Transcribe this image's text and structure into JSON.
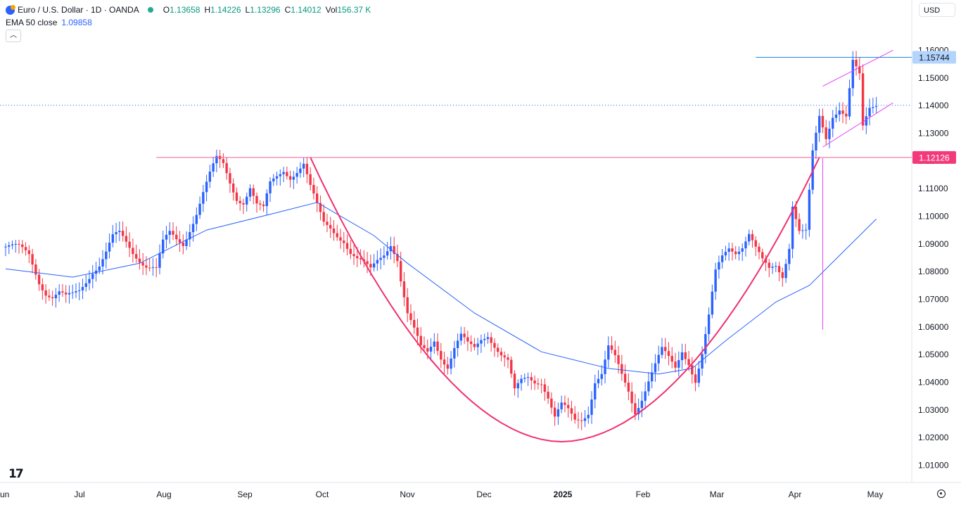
{
  "legend": {
    "symbol": "Euro / U.S. Dollar · 1D · OANDA",
    "open_label": "O",
    "open": "1.13658",
    "high_label": "H",
    "high": "1.14226",
    "low_label": "L",
    "low": "1.13296",
    "close_label": "C",
    "close": "1.14012",
    "vol_label": "Vol",
    "vol": "156.37 K",
    "ema_label": "EMA 50 close",
    "ema_value": "1.09858"
  },
  "currency": "USD",
  "logo_text": "17",
  "colors": {
    "up": "#2962ff",
    "down": "#f23645",
    "ema": "#2962ff",
    "curve": "#f0306e",
    "level": "#f06292",
    "channel": "#e040fb",
    "top_level": "#1e88e5"
  },
  "chart_data": {
    "type": "candlestick",
    "symbol": "EUR/USD",
    "x_tick_labels": [
      "un",
      "Jul",
      "Aug",
      "Sep",
      "Oct",
      "Nov",
      "Dec",
      "2025",
      "Feb",
      "Mar",
      "Apr",
      "May"
    ],
    "y_tick_labels": [
      "1.16000",
      "1.15000",
      "1.14000",
      "1.13000",
      "1.12000",
      "1.11000",
      "1.10000",
      "1.09000",
      "1.08000",
      "1.07000",
      "1.06000",
      "1.05000",
      "1.04000",
      "1.03000",
      "1.02000",
      "1.01000"
    ],
    "ylim": [
      1.003,
      1.168
    ],
    "price_labels": [
      {
        "value": "1.15744",
        "price": 1.15744,
        "style": "top_level"
      },
      {
        "value": "1.12126",
        "price": 1.12126,
        "style": "level"
      }
    ],
    "current_price": 1.14012,
    "close_path": [
      [
        0,
        1.089
      ],
      [
        4,
        1.088
      ],
      [
        7,
        1.086
      ],
      [
        10,
        1.077
      ],
      [
        12,
        1.073
      ],
      [
        14,
        1.071
      ],
      [
        16,
        1.072
      ],
      [
        18,
        1.07
      ],
      [
        20,
        1.071
      ],
      [
        22,
        1.073
      ],
      [
        24,
        1.077
      ],
      [
        26,
        1.081
      ],
      [
        28,
        1.083
      ],
      [
        30,
        1.087
      ],
      [
        32,
        1.092
      ],
      [
        34,
        1.093
      ],
      [
        36,
        1.09
      ],
      [
        38,
        1.087
      ],
      [
        40,
        1.085
      ],
      [
        42,
        1.083
      ],
      [
        44,
        1.082
      ],
      [
        45,
        1.081
      ],
      [
        47,
        1.09
      ],
      [
        49,
        1.093
      ],
      [
        51,
        1.091
      ],
      [
        53,
        1.09
      ],
      [
        55,
        1.096
      ],
      [
        57,
        1.102
      ],
      [
        59,
        1.109
      ],
      [
        61,
        1.115
      ],
      [
        63,
        1.12
      ],
      [
        65,
        1.118
      ],
      [
        67,
        1.112
      ],
      [
        69,
        1.107
      ],
      [
        71,
        1.106
      ],
      [
        73,
        1.111
      ],
      [
        75,
        1.104
      ],
      [
        77,
        1.102
      ],
      [
        79,
        1.111
      ],
      [
        81,
        1.114
      ],
      [
        83,
        1.117
      ],
      [
        85,
        1.115
      ],
      [
        87,
        1.117
      ],
      [
        89,
        1.119
      ],
      [
        91,
        1.11
      ],
      [
        93,
        1.103
      ],
      [
        95,
        1.097
      ],
      [
        97,
        1.096
      ],
      [
        99,
        1.094
      ],
      [
        101,
        1.092
      ],
      [
        103,
        1.087
      ],
      [
        105,
        1.084
      ],
      [
        107,
        1.082
      ],
      [
        109,
        1.08
      ],
      [
        111,
        1.084
      ],
      [
        113,
        1.087
      ],
      [
        115,
        1.091
      ],
      [
        117,
        1.085
      ],
      [
        118,
        1.077
      ],
      [
        120,
        1.064
      ],
      [
        122,
        1.058
      ],
      [
        124,
        1.052
      ],
      [
        126,
        1.051
      ],
      [
        128,
        1.056
      ],
      [
        130,
        1.05
      ],
      [
        132,
        1.046
      ],
      [
        134,
        1.052
      ],
      [
        136,
        1.056
      ],
      [
        138,
        1.053
      ],
      [
        140,
        1.052
      ],
      [
        142,
        1.056
      ],
      [
        144,
        1.058
      ],
      [
        146,
        1.054
      ],
      [
        148,
        1.05
      ],
      [
        150,
        1.047
      ],
      [
        152,
        1.036
      ],
      [
        154,
        1.04
      ],
      [
        156,
        1.042
      ],
      [
        158,
        1.041
      ],
      [
        160,
        1.041
      ],
      [
        162,
        1.035
      ],
      [
        164,
        1.027
      ],
      [
        166,
        1.031
      ],
      [
        168,
        1.029
      ],
      [
        170,
        1.026
      ],
      [
        172,
        1.027
      ],
      [
        174,
        1.03
      ],
      [
        176,
        1.041
      ],
      [
        178,
        1.043
      ],
      [
        180,
        1.052
      ],
      [
        182,
        1.048
      ],
      [
        184,
        1.042
      ],
      [
        186,
        1.037
      ],
      [
        188,
        1.03
      ],
      [
        190,
        1.035
      ],
      [
        192,
        1.041
      ],
      [
        194,
        1.046
      ],
      [
        196,
        1.051
      ],
      [
        198,
        1.048
      ],
      [
        200,
        1.045
      ],
      [
        202,
        1.052
      ],
      [
        204,
        1.048
      ],
      [
        206,
        1.041
      ],
      [
        208,
        1.05
      ],
      [
        210,
        1.063
      ],
      [
        212,
        1.079
      ],
      [
        214,
        1.085
      ],
      [
        216,
        1.089
      ],
      [
        218,
        1.088
      ],
      [
        220,
        1.09
      ],
      [
        222,
        1.094
      ],
      [
        224,
        1.088
      ],
      [
        226,
        1.083
      ],
      [
        228,
        1.08
      ],
      [
        230,
        1.082
      ],
      [
        232,
        1.079
      ],
      [
        234,
        1.09
      ],
      [
        235,
        1.105
      ],
      [
        237,
        1.095
      ],
      [
        239,
        1.094
      ],
      [
        241,
        1.122
      ],
      [
        243,
        1.135
      ],
      [
        245,
        1.128
      ],
      [
        247,
        1.137
      ],
      [
        249,
        1.14
      ],
      [
        251,
        1.137
      ],
      [
        253,
        1.156
      ],
      [
        255,
        1.15
      ],
      [
        256,
        1.131
      ],
      [
        258,
        1.138
      ],
      [
        260,
        1.14
      ]
    ],
    "ema50": [
      [
        0,
        1.081
      ],
      [
        20,
        1.078
      ],
      [
        40,
        1.083
      ],
      [
        60,
        1.095
      ],
      [
        80,
        1.101
      ],
      [
        93,
        1.105
      ],
      [
        110,
        1.093
      ],
      [
        120,
        1.083
      ],
      [
        140,
        1.065
      ],
      [
        160,
        1.051
      ],
      [
        180,
        1.045
      ],
      [
        195,
        1.043
      ],
      [
        205,
        1.045
      ],
      [
        215,
        1.055
      ],
      [
        230,
        1.069
      ],
      [
        240,
        1.075
      ],
      [
        250,
        1.087
      ],
      [
        260,
        1.099
      ]
    ],
    "rounding_bottom": {
      "left": [
        91,
        1.1213
      ],
      "bottom": [
        166,
        1.0185
      ],
      "right": [
        243,
        1.1213
      ]
    },
    "levels": [
      {
        "price": 1.12126,
        "from": 45
      },
      {
        "price": 1.15744,
        "from": 224
      }
    ],
    "channel": {
      "upper": [
        [
          244,
          1.147
        ],
        [
          265,
          1.16
        ]
      ],
      "lower": [
        [
          244,
          1.125
        ],
        [
          265,
          1.141
        ]
      ]
    },
    "vertical_marker": {
      "x": 244,
      "from": 1.121,
      "to": 1.059
    }
  }
}
